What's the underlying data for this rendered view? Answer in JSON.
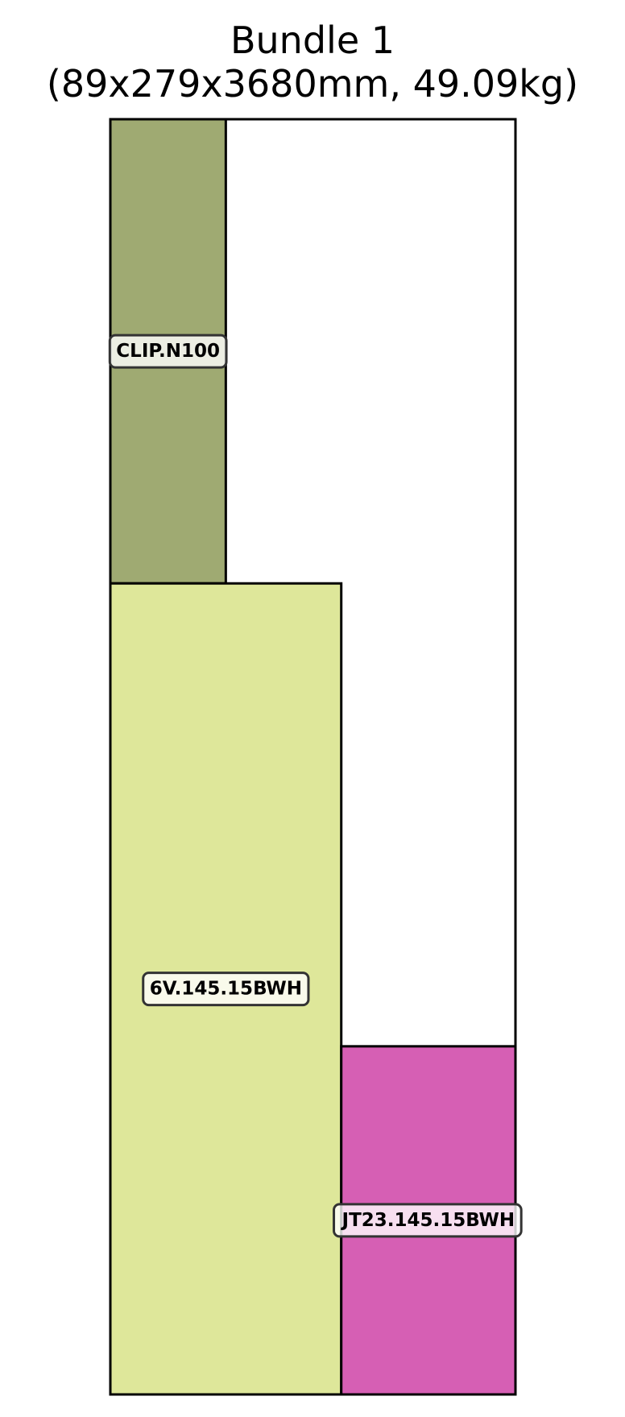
{
  "title": {
    "line1": "Bundle 1",
    "line2": "(89x279x3680mm, 49.09kg)"
  },
  "bundle": {
    "width_mm": 279,
    "length_mm": 3680,
    "outline_color": "#000000"
  },
  "parts": [
    {
      "label": "CLIP.N100",
      "color": "#9faa72",
      "x_from": 0,
      "x_to": 0.285,
      "y_from": 0,
      "y_to": 0.364
    },
    {
      "label": "6V.145.15BWH",
      "color": "#dee79a",
      "x_from": 0,
      "x_to": 0.57,
      "y_from": 0.364,
      "y_to": 1.0
    },
    {
      "label": "JT23.145.15BWH",
      "color": "#d65fb4",
      "x_from": 0.57,
      "x_to": 1.0,
      "y_from": 0.727,
      "y_to": 1.0
    }
  ]
}
